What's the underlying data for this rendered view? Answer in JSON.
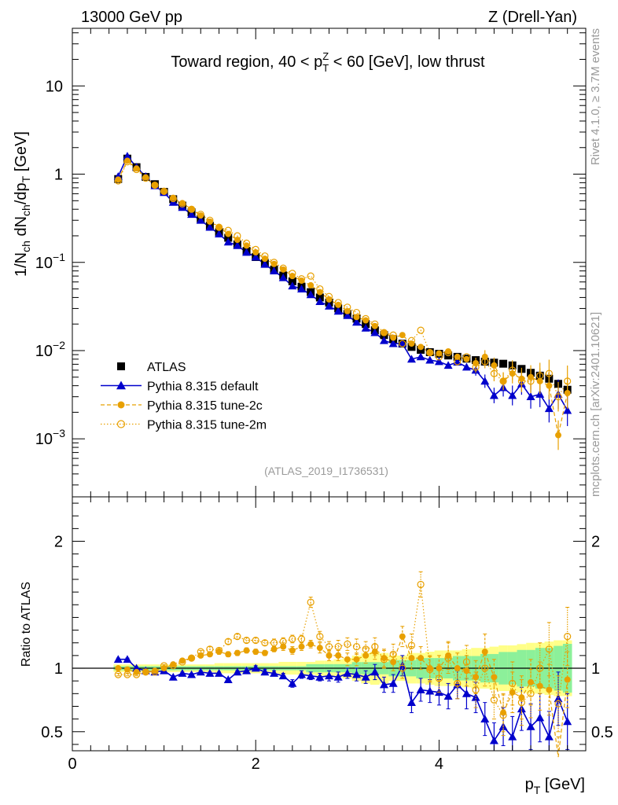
{
  "header": {
    "left": "13000 GeV pp",
    "right": "Z (Drell-Yan)",
    "right_side_top": "Rivet 4.1.0, ≥ 3.7M events",
    "right_side_bottom": "mcplots.cern.ch [arXiv:2401.10621]",
    "analysis_id": "(ATLAS_2019_I1736531)"
  },
  "chart_data": [
    {
      "type": "scatter",
      "panel": "main",
      "title": "Toward region, 40 < pTZ < 60 [GeV], low thrust",
      "title_parts": {
        "pre": "Toward region, 40 < p",
        "sub": "T",
        "sup": "Z",
        "post": " < 60 [GeV], low thrust"
      },
      "ylabel": "1/N_ch dN_ch/dp_T [GeV]",
      "ylabel_parts": {
        "a": "1/N",
        "a_sub": "ch",
        "b": " dN",
        "b_sub": "ch",
        "c": "/dp",
        "c_sub": "T",
        "d": " [GeV]"
      },
      "yscale": "log",
      "xlim": [
        0,
        5.6
      ],
      "ylim": [
        0.00022,
        45
      ],
      "y_ticks": [
        {
          "value": 0.001,
          "base": "10",
          "exp": "−3"
        },
        {
          "value": 0.01,
          "base": "10",
          "exp": "−2"
        },
        {
          "value": 0.1,
          "base": "10",
          "exp": "−1"
        },
        {
          "value": 1,
          "base": "1",
          "exp": ""
        },
        {
          "value": 10,
          "base": "10",
          "exp": ""
        }
      ],
      "legend_position": "bottom-left",
      "x": [
        0.5,
        0.6,
        0.7,
        0.8,
        0.9,
        1.0,
        1.1,
        1.2,
        1.3,
        1.4,
        1.5,
        1.6,
        1.7,
        1.8,
        1.9,
        2.0,
        2.1,
        2.2,
        2.3,
        2.4,
        2.5,
        2.6,
        2.7,
        2.8,
        2.9,
        3.0,
        3.1,
        3.2,
        3.3,
        3.4,
        3.5,
        3.6,
        3.7,
        3.8,
        3.9,
        4.0,
        4.1,
        4.2,
        4.3,
        4.4,
        4.5,
        4.6,
        4.7,
        4.8,
        4.9,
        5.0,
        5.1,
        5.2,
        5.3,
        5.4
      ],
      "series": [
        {
          "name": "ATLAS",
          "style": "data",
          "color": "#000000",
          "values": [
            0.88,
            1.5,
            1.2,
            0.93,
            0.77,
            0.63,
            0.52,
            0.44,
            0.37,
            0.31,
            0.26,
            0.22,
            0.19,
            0.16,
            0.135,
            0.115,
            0.098,
            0.083,
            0.071,
            0.061,
            0.053,
            0.046,
            0.04,
            0.035,
            0.03,
            0.026,
            0.023,
            0.02,
            0.017,
            0.015,
            0.0135,
            0.012,
            0.011,
            0.0102,
            0.0096,
            0.0092,
            0.0088,
            0.0085,
            0.0081,
            0.0078,
            0.0075,
            0.0073,
            0.0071,
            0.0068,
            0.0062,
            0.0056,
            0.0052,
            0.0048,
            0.0042,
            0.0036
          ]
        },
        {
          "name": "Pythia 8.315 default",
          "style": "triangle",
          "color": "#0000cc",
          "values": [
            0.94,
            1.6,
            1.2,
            0.94,
            0.74,
            0.62,
            0.48,
            0.42,
            0.35,
            0.3,
            0.25,
            0.21,
            0.17,
            0.155,
            0.13,
            0.115,
            0.095,
            0.08,
            0.067,
            0.054,
            0.05,
            0.043,
            0.036,
            0.032,
            0.028,
            0.025,
            0.021,
            0.018,
            0.016,
            0.013,
            0.012,
            0.012,
            0.008,
            0.0085,
            0.0078,
            0.0075,
            0.0068,
            0.0074,
            0.0065,
            0.006,
            0.0045,
            0.0031,
            0.0038,
            0.0031,
            0.0042,
            0.003,
            0.0032,
            0.0022,
            0.0032,
            0.0021
          ]
        },
        {
          "name": "Pythia 8.315 tune-2c",
          "style": "circle",
          "color": "#e8a000",
          "values": [
            0.87,
            1.42,
            1.16,
            0.92,
            0.75,
            0.63,
            0.54,
            0.47,
            0.4,
            0.34,
            0.29,
            0.25,
            0.21,
            0.18,
            0.155,
            0.13,
            0.11,
            0.096,
            0.083,
            0.07,
            0.062,
            0.055,
            0.046,
            0.038,
            0.033,
            0.028,
            0.024,
            0.022,
            0.019,
            0.016,
            0.014,
            0.015,
            0.012,
            0.011,
            0.0095,
            0.0093,
            0.0098,
            0.0085,
            0.008,
            0.0072,
            0.0085,
            0.0068,
            0.0045,
            0.0055,
            0.0048,
            0.005,
            0.0045,
            0.004,
            0.0011,
            0.0033
          ]
        },
        {
          "name": "Pythia 8.315 tune-2m",
          "style": "open-circle",
          "color": "#e8a000",
          "values": [
            0.84,
            1.38,
            1.13,
            0.9,
            0.75,
            0.64,
            0.53,
            0.46,
            0.4,
            0.35,
            0.3,
            0.25,
            0.23,
            0.2,
            0.165,
            0.14,
            0.118,
            0.1,
            0.086,
            0.075,
            0.065,
            0.07,
            0.05,
            0.041,
            0.035,
            0.031,
            0.027,
            0.023,
            0.02,
            0.016,
            0.015,
            0.012,
            0.013,
            0.017,
            0.0095,
            0.0085,
            0.0095,
            0.0075,
            0.0085,
            0.0065,
            0.0075,
            0.0055,
            0.0045,
            0.006,
            0.0045,
            0.0045,
            0.0052,
            0.0055,
            0.003,
            0.0045
          ]
        }
      ],
      "legend": [
        {
          "label": "ATLAS",
          "style": "data"
        },
        {
          "label": "Pythia 8.315 default",
          "style": "triangle"
        },
        {
          "label": "Pythia 8.315 tune-2c",
          "style": "circle"
        },
        {
          "label": "Pythia 8.315 tune-2m",
          "style": "open-circle"
        }
      ]
    },
    {
      "type": "scatter",
      "panel": "ratio",
      "xlabel": "p_T [GeV]",
      "xlabel_parts": {
        "a": "p",
        "a_sub": "T",
        "b": " [GeV]"
      },
      "ylabel": "Ratio to ATLAS",
      "yscale": "linear",
      "xlim": [
        0,
        5.6
      ],
      "ylim": [
        0.35,
        2.35
      ],
      "x_ticks": [
        "0",
        "2",
        "4"
      ],
      "x_tick_values": [
        0,
        2,
        4
      ],
      "y_ticks": [
        "0.5",
        "1",
        "2"
      ],
      "y_tick_values": [
        0.5,
        1,
        2
      ],
      "band_stat_halfwidth": [
        0.01,
        0.01,
        0.01,
        0.01,
        0.01,
        0.01,
        0.01,
        0.01,
        0.01,
        0.01,
        0.01,
        0.01,
        0.01,
        0.01,
        0.01,
        0.01,
        0.01,
        0.01,
        0.01,
        0.01,
        0.01,
        0.02,
        0.02,
        0.02,
        0.02,
        0.02,
        0.03,
        0.03,
        0.03,
        0.03,
        0.04,
        0.04,
        0.04,
        0.05,
        0.05,
        0.05,
        0.05,
        0.06,
        0.06,
        0.06,
        0.07,
        0.07,
        0.08,
        0.08,
        0.09,
        0.09,
        0.1,
        0.1,
        0.11,
        0.12
      ],
      "band_total_halfwidth": [
        0.03,
        0.03,
        0.03,
        0.03,
        0.03,
        0.03,
        0.03,
        0.03,
        0.03,
        0.03,
        0.03,
        0.04,
        0.04,
        0.04,
        0.04,
        0.04,
        0.04,
        0.04,
        0.05,
        0.05,
        0.05,
        0.05,
        0.06,
        0.06,
        0.07,
        0.08,
        0.1,
        0.12,
        0.13,
        0.12,
        0.1,
        0.1,
        0.12,
        0.12,
        0.13,
        0.14,
        0.14,
        0.14,
        0.15,
        0.16,
        0.16,
        0.17,
        0.18,
        0.18,
        0.19,
        0.2,
        0.2,
        0.21,
        0.22,
        0.22
      ],
      "series": [
        {
          "name": "Pythia 8.315 default",
          "style": "triangle",
          "color": "#0000cc",
          "values": [
            1.07,
            1.07,
            1.0,
            0.98,
            0.97,
            0.98,
            0.93,
            0.96,
            0.95,
            0.97,
            0.96,
            0.96,
            0.91,
            0.97,
            0.98,
            1.0,
            0.97,
            0.96,
            0.94,
            0.88,
            0.95,
            0.94,
            0.93,
            0.94,
            0.93,
            0.96,
            0.95,
            0.93,
            0.97,
            0.87,
            0.88,
            1.02,
            0.73,
            0.83,
            0.82,
            0.81,
            0.78,
            0.87,
            0.8,
            0.77,
            0.6,
            0.43,
            0.54,
            0.46,
            0.68,
            0.54,
            0.61,
            0.46,
            0.76,
            0.58
          ],
          "errors": [
            0.01,
            0.01,
            0.01,
            0.01,
            0.01,
            0.01,
            0.01,
            0.01,
            0.01,
            0.01,
            0.01,
            0.01,
            0.01,
            0.01,
            0.02,
            0.02,
            0.02,
            0.02,
            0.02,
            0.03,
            0.03,
            0.03,
            0.03,
            0.04,
            0.04,
            0.04,
            0.05,
            0.05,
            0.06,
            0.06,
            0.07,
            0.08,
            0.08,
            0.09,
            0.09,
            0.1,
            0.1,
            0.11,
            0.12,
            0.12,
            0.13,
            0.14,
            0.15,
            0.16,
            0.17,
            0.18,
            0.19,
            0.2,
            0.21,
            0.22
          ]
        },
        {
          "name": "Pythia 8.315 tune-2c",
          "style": "circle",
          "color": "#e8a000",
          "values": [
            1.0,
            0.99,
            0.97,
            0.97,
            0.98,
            1.0,
            1.03,
            1.06,
            1.08,
            1.1,
            1.11,
            1.13,
            1.11,
            1.12,
            1.14,
            1.13,
            1.12,
            1.15,
            1.17,
            1.14,
            1.17,
            1.19,
            1.16,
            1.1,
            1.1,
            1.07,
            1.07,
            1.1,
            1.13,
            1.08,
            1.05,
            1.25,
            1.08,
            1.08,
            1.0,
            1.0,
            1.1,
            1.0,
            0.98,
            0.93,
            1.13,
            0.93,
            0.65,
            0.81,
            0.77,
            0.89,
            0.86,
            0.83,
            0.26,
            0.91
          ],
          "errors": [
            0.01,
            0.01,
            0.01,
            0.01,
            0.01,
            0.01,
            0.01,
            0.01,
            0.01,
            0.01,
            0.01,
            0.02,
            0.02,
            0.02,
            0.02,
            0.02,
            0.02,
            0.02,
            0.03,
            0.03,
            0.03,
            0.03,
            0.04,
            0.04,
            0.04,
            0.05,
            0.05,
            0.06,
            0.06,
            0.07,
            0.07,
            0.08,
            0.09,
            0.09,
            0.1,
            0.1,
            0.11,
            0.12,
            0.12,
            0.13,
            0.14,
            0.14,
            0.15,
            0.16,
            0.17,
            0.18,
            0.19,
            0.2,
            0.2,
            0.22
          ]
        },
        {
          "name": "Pythia 8.315 tune-2m",
          "style": "open-circle",
          "color": "#e8a000",
          "values": [
            0.95,
            0.95,
            0.95,
            0.97,
            0.97,
            1.02,
            1.02,
            1.05,
            1.08,
            1.13,
            1.15,
            1.14,
            1.21,
            1.25,
            1.22,
            1.22,
            1.2,
            1.2,
            1.21,
            1.23,
            1.23,
            1.52,
            1.25,
            1.17,
            1.17,
            1.19,
            1.17,
            1.15,
            1.17,
            1.07,
            1.11,
            1.0,
            1.18,
            1.66,
            0.99,
            0.92,
            1.08,
            0.88,
            1.05,
            0.83,
            1.0,
            0.75,
            0.63,
            0.88,
            0.73,
            0.8,
            1.0,
            1.15,
            0.72,
            1.25
          ],
          "errors": [
            0.01,
            0.01,
            0.01,
            0.01,
            0.01,
            0.01,
            0.01,
            0.01,
            0.01,
            0.01,
            0.02,
            0.02,
            0.02,
            0.02,
            0.02,
            0.02,
            0.02,
            0.03,
            0.03,
            0.03,
            0.03,
            0.04,
            0.04,
            0.04,
            0.05,
            0.05,
            0.06,
            0.06,
            0.07,
            0.07,
            0.08,
            0.08,
            0.09,
            0.1,
            0.1,
            0.11,
            0.12,
            0.12,
            0.13,
            0.14,
            0.14,
            0.15,
            0.16,
            0.17,
            0.18,
            0.19,
            0.2,
            0.21,
            0.22,
            0.23
          ]
        }
      ]
    }
  ]
}
